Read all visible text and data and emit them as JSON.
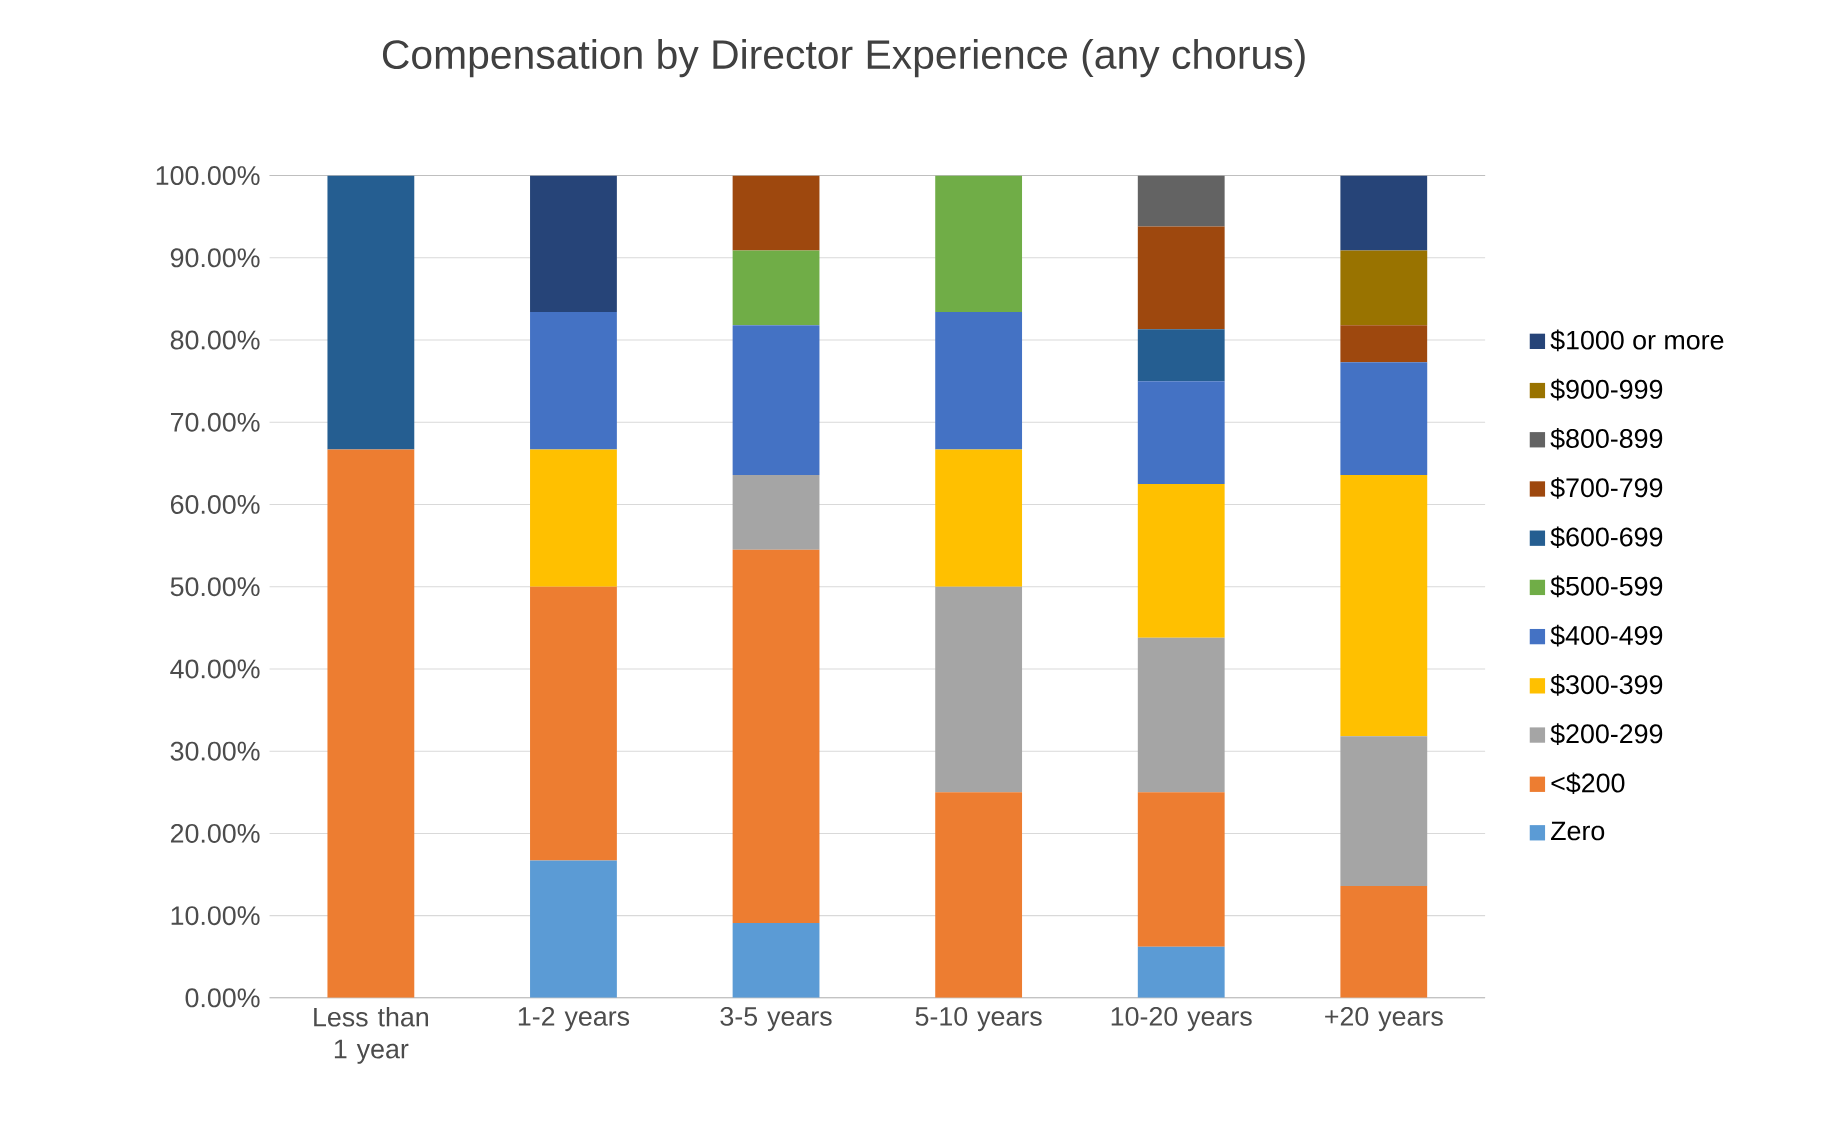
{
  "chart_data": {
    "type": "bar",
    "stacked": true,
    "title": "Compensation by Director Experience (any chorus)",
    "categories": [
      "Less than 1 year",
      "1-2 years",
      "3-5 years",
      "5-10 years",
      "10-20 years",
      "+20 years"
    ],
    "series": [
      {
        "name": "Zero",
        "color": "#5b9bd5",
        "values": [
          0,
          16.7,
          9.1,
          0,
          6.2,
          0
        ]
      },
      {
        "name": "<$200",
        "color": "#ed7d31",
        "values": [
          66.7,
          33.3,
          45.4,
          25,
          18.8,
          13.6
        ]
      },
      {
        "name": "$200-299",
        "color": "#a5a5a5",
        "values": [
          0,
          0,
          9.1,
          25,
          18.8,
          18.2
        ]
      },
      {
        "name": "$300-399",
        "color": "#ffc000",
        "values": [
          0,
          16.7,
          0,
          16.7,
          18.7,
          31.8
        ]
      },
      {
        "name": "$400-499",
        "color": "#4472c4",
        "values": [
          0,
          16.7,
          18.2,
          16.7,
          12.5,
          13.7
        ]
      },
      {
        "name": "$500-599",
        "color": "#70ad47",
        "values": [
          0,
          0,
          9.1,
          16.6,
          0,
          0
        ]
      },
      {
        "name": "$600-699",
        "color": "#255e91",
        "values": [
          33.3,
          0,
          0,
          0,
          6.3,
          0
        ]
      },
      {
        "name": "$700-799",
        "color": "#9e480e",
        "values": [
          0,
          0,
          9.1,
          0,
          12.5,
          4.5
        ]
      },
      {
        "name": "$800-899",
        "color": "#636363",
        "values": [
          0,
          0,
          0,
          0,
          6.2,
          0
        ]
      },
      {
        "name": "$900-999",
        "color": "#997300",
        "values": [
          0,
          0,
          0,
          0,
          0,
          9.1
        ]
      },
      {
        "name": "$1000 or more",
        "color": "#264478",
        "values": [
          0,
          16.6,
          0,
          0,
          0,
          9.1
        ]
      }
    ],
    "ylim": [
      0,
      100
    ],
    "yticks": [
      {
        "value": 0,
        "label": "0.00%"
      },
      {
        "value": 10,
        "label": "10.00%"
      },
      {
        "value": 20,
        "label": "20.00%"
      },
      {
        "value": 30,
        "label": "30.00%"
      },
      {
        "value": 40,
        "label": "40.00%"
      },
      {
        "value": 50,
        "label": "50.00%"
      },
      {
        "value": 60,
        "label": "60.00%"
      },
      {
        "value": 70,
        "label": "70.00%"
      },
      {
        "value": 80,
        "label": "80.00%"
      },
      {
        "value": 90,
        "label": "90.00%"
      },
      {
        "value": 100,
        "label": "100.00%"
      }
    ],
    "grid": "y",
    "legend": "right"
  }
}
